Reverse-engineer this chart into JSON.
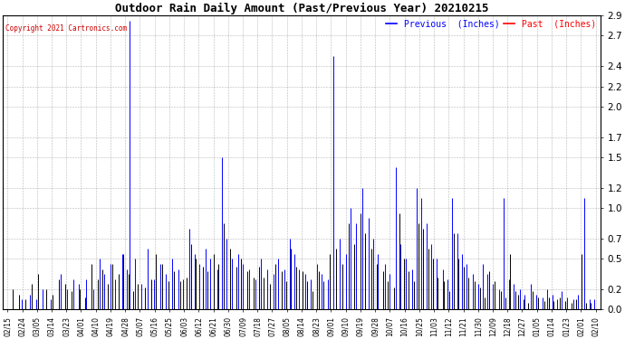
{
  "title": "Outdoor Rain Daily Amount (Past/Previous Year) 20210215",
  "copyright": "Copyright 2021 Cartronics.com",
  "legend_previous_label": "Previous  (Inches)",
  "legend_past_label": "Past  (Inches)",
  "legend_previous_color": "#0000ff",
  "legend_past_color": "#ff0000",
  "past_line_color": "#000000",
  "background_color": "#ffffff",
  "grid_color": "#888888",
  "yticks": [
    0.0,
    0.2,
    0.5,
    0.7,
    1.0,
    1.2,
    1.5,
    1.7,
    2.0,
    2.2,
    2.4,
    2.7,
    2.9
  ],
  "ylim": [
    0.0,
    2.9
  ],
  "xtick_labels": [
    "02/15",
    "02/24",
    "03/05",
    "03/14",
    "03/23",
    "04/01",
    "04/10",
    "04/19",
    "04/28",
    "05/07",
    "05/16",
    "05/25",
    "06/03",
    "06/12",
    "06/21",
    "06/30",
    "07/09",
    "07/18",
    "07/27",
    "08/05",
    "08/14",
    "08/23",
    "09/01",
    "09/10",
    "09/19",
    "09/28",
    "10/07",
    "10/16",
    "10/25",
    "11/03",
    "11/12",
    "11/21",
    "11/30",
    "12/09",
    "12/18",
    "12/27",
    "01/05",
    "01/14",
    "01/23",
    "02/01",
    "02/10"
  ],
  "previous_data": [
    [
      9,
      0.1
    ],
    [
      14,
      0.15
    ],
    [
      18,
      0.1
    ],
    [
      22,
      0.2
    ],
    [
      27,
      0.1
    ],
    [
      33,
      0.35
    ],
    [
      37,
      0.2
    ],
    [
      41,
      0.3
    ],
    [
      44,
      0.25
    ],
    [
      49,
      0.3
    ],
    [
      53,
      0.2
    ],
    [
      57,
      0.5
    ],
    [
      60,
      0.35
    ],
    [
      64,
      0.45
    ],
    [
      67,
      0.3
    ],
    [
      71,
      0.55
    ],
    [
      74,
      0.4
    ],
    [
      76,
      2.85
    ],
    [
      79,
      0.5
    ],
    [
      83,
      0.25
    ],
    [
      87,
      0.6
    ],
    [
      91,
      0.3
    ],
    [
      95,
      0.45
    ],
    [
      98,
      0.35
    ],
    [
      102,
      0.5
    ],
    [
      106,
      0.4
    ],
    [
      109,
      0.3
    ],
    [
      113,
      0.8
    ],
    [
      116,
      0.55
    ],
    [
      119,
      0.45
    ],
    [
      123,
      0.6
    ],
    [
      126,
      0.5
    ],
    [
      130,
      0.4
    ],
    [
      133,
      1.5
    ],
    [
      136,
      0.7
    ],
    [
      139,
      0.5
    ],
    [
      143,
      0.55
    ],
    [
      146,
      0.45
    ],
    [
      150,
      0.4
    ],
    [
      154,
      0.3
    ],
    [
      157,
      0.5
    ],
    [
      161,
      0.4
    ],
    [
      165,
      0.35
    ],
    [
      168,
      0.5
    ],
    [
      172,
      0.4
    ],
    [
      175,
      0.7
    ],
    [
      178,
      0.55
    ],
    [
      181,
      0.4
    ],
    [
      185,
      0.35
    ],
    [
      188,
      0.3
    ],
    [
      192,
      0.45
    ],
    [
      195,
      0.35
    ],
    [
      199,
      0.3
    ],
    [
      202,
      2.5
    ],
    [
      206,
      0.7
    ],
    [
      210,
      0.55
    ],
    [
      213,
      1.0
    ],
    [
      216,
      0.85
    ],
    [
      220,
      1.2
    ],
    [
      224,
      0.9
    ],
    [
      227,
      0.7
    ],
    [
      230,
      0.55
    ],
    [
      234,
      0.45
    ],
    [
      237,
      0.35
    ],
    [
      241,
      1.4
    ],
    [
      244,
      0.65
    ],
    [
      247,
      0.5
    ],
    [
      251,
      0.4
    ],
    [
      254,
      1.2
    ],
    [
      257,
      1.1
    ],
    [
      260,
      0.85
    ],
    [
      263,
      0.65
    ],
    [
      266,
      0.5
    ],
    [
      270,
      0.4
    ],
    [
      273,
      0.3
    ],
    [
      276,
      1.1
    ],
    [
      279,
      0.75
    ],
    [
      282,
      0.55
    ],
    [
      285,
      0.45
    ],
    [
      289,
      0.35
    ],
    [
      292,
      0.25
    ],
    [
      295,
      0.45
    ],
    [
      298,
      0.35
    ],
    [
      301,
      0.25
    ],
    [
      305,
      0.2
    ],
    [
      308,
      1.1
    ],
    [
      311,
      0.3
    ],
    [
      314,
      0.25
    ],
    [
      318,
      0.2
    ],
    [
      321,
      0.15
    ],
    [
      325,
      0.25
    ],
    [
      328,
      0.15
    ],
    [
      332,
      0.12
    ],
    [
      335,
      0.2
    ],
    [
      338,
      0.15
    ],
    [
      341,
      0.1
    ],
    [
      344,
      0.18
    ],
    [
      347,
      0.12
    ],
    [
      351,
      0.1
    ],
    [
      354,
      0.15
    ],
    [
      358,
      1.1
    ],
    [
      361,
      0.1
    ],
    [
      364,
      0.1
    ]
  ],
  "past_data": [
    [
      3,
      0.2
    ],
    [
      7,
      0.15
    ],
    [
      11,
      0.1
    ],
    [
      15,
      0.25
    ],
    [
      19,
      0.35
    ],
    [
      24,
      0.2
    ],
    [
      28,
      0.15
    ],
    [
      32,
      0.3
    ],
    [
      36,
      0.25
    ],
    [
      40,
      0.18
    ],
    [
      45,
      0.2
    ],
    [
      48,
      0.12
    ],
    [
      52,
      0.45
    ],
    [
      56,
      0.3
    ],
    [
      59,
      0.4
    ],
    [
      62,
      0.25
    ],
    [
      65,
      0.45
    ],
    [
      69,
      0.35
    ],
    [
      72,
      0.55
    ],
    [
      75,
      0.35
    ],
    [
      78,
      0.18
    ],
    [
      81,
      0.25
    ],
    [
      85,
      0.22
    ],
    [
      89,
      0.3
    ],
    [
      92,
      0.55
    ],
    [
      96,
      0.45
    ],
    [
      100,
      0.28
    ],
    [
      103,
      0.38
    ],
    [
      107,
      0.28
    ],
    [
      111,
      0.32
    ],
    [
      114,
      0.65
    ],
    [
      117,
      0.5
    ],
    [
      121,
      0.42
    ],
    [
      124,
      0.38
    ],
    [
      128,
      0.55
    ],
    [
      131,
      0.45
    ],
    [
      134,
      0.85
    ],
    [
      138,
      0.6
    ],
    [
      142,
      0.42
    ],
    [
      145,
      0.5
    ],
    [
      149,
      0.38
    ],
    [
      153,
      0.32
    ],
    [
      156,
      0.42
    ],
    [
      159,
      0.32
    ],
    [
      163,
      0.25
    ],
    [
      166,
      0.45
    ],
    [
      170,
      0.38
    ],
    [
      173,
      0.28
    ],
    [
      176,
      0.6
    ],
    [
      179,
      0.42
    ],
    [
      183,
      0.38
    ],
    [
      186,
      0.28
    ],
    [
      189,
      0.18
    ],
    [
      193,
      0.38
    ],
    [
      196,
      0.28
    ],
    [
      200,
      0.55
    ],
    [
      204,
      0.6
    ],
    [
      208,
      0.45
    ],
    [
      212,
      0.85
    ],
    [
      215,
      0.65
    ],
    [
      219,
      0.95
    ],
    [
      222,
      0.75
    ],
    [
      226,
      0.6
    ],
    [
      229,
      0.45
    ],
    [
      233,
      0.38
    ],
    [
      236,
      0.28
    ],
    [
      240,
      0.22
    ],
    [
      243,
      0.95
    ],
    [
      246,
      0.5
    ],
    [
      249,
      0.38
    ],
    [
      252,
      0.28
    ],
    [
      255,
      0.85
    ],
    [
      258,
      0.8
    ],
    [
      261,
      0.6
    ],
    [
      264,
      0.5
    ],
    [
      267,
      0.32
    ],
    [
      271,
      0.28
    ],
    [
      274,
      0.18
    ],
    [
      277,
      0.75
    ],
    [
      280,
      0.5
    ],
    [
      283,
      0.42
    ],
    [
      286,
      0.32
    ],
    [
      290,
      0.28
    ],
    [
      293,
      0.22
    ],
    [
      296,
      0.12
    ],
    [
      299,
      0.38
    ],
    [
      302,
      0.28
    ],
    [
      306,
      0.18
    ],
    [
      309,
      0.12
    ],
    [
      312,
      0.55
    ],
    [
      315,
      0.18
    ],
    [
      317,
      0.15
    ],
    [
      320,
      0.1
    ],
    [
      323,
      0.07
    ],
    [
      326,
      0.18
    ],
    [
      329,
      0.12
    ],
    [
      333,
      0.08
    ],
    [
      336,
      0.12
    ],
    [
      339,
      0.08
    ],
    [
      343,
      0.12
    ],
    [
      346,
      0.08
    ],
    [
      350,
      0.07
    ],
    [
      353,
      0.1
    ],
    [
      356,
      0.55
    ],
    [
      359,
      0.07
    ],
    [
      362,
      0.07
    ]
  ]
}
